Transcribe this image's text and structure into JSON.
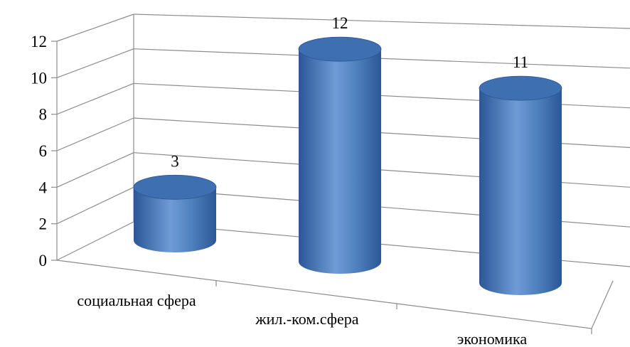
{
  "chart_data": {
    "type": "bar",
    "style": "3d-cylinder",
    "categories": [
      "социальная сфера",
      "жил.-ком.сфера",
      "экономика"
    ],
    "values": [
      3,
      12,
      11
    ],
    "data_labels": [
      "3",
      "12",
      "11"
    ],
    "ylim": [
      0,
      12
    ],
    "y_ticks": [
      "0",
      "2",
      "4",
      "6",
      "8",
      "10",
      "12"
    ],
    "grid": true,
    "legend": "none",
    "colors": {
      "bar_dark": "#2b5797",
      "bar_mid": "#4f81bd",
      "bar_light": "#8db3e2",
      "bar_top": "#3e6fb0",
      "grid": "#8c8c8c"
    }
  }
}
